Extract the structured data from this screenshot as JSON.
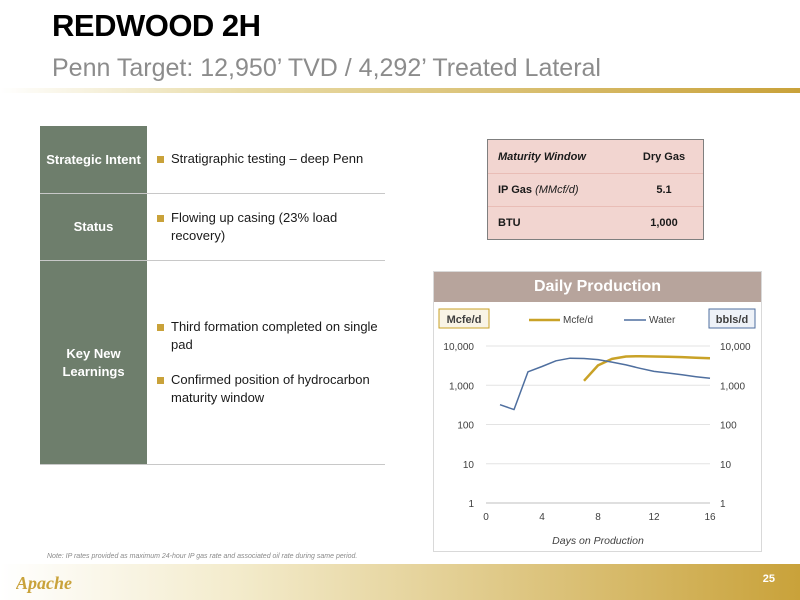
{
  "header": {
    "title": "REDWOOD 2H",
    "subtitle": "Penn Target: 12,950’ TVD / 4,292’ Treated Lateral"
  },
  "info_table": {
    "rows": [
      {
        "label": "Strategic Intent",
        "bullets": [
          "Stratigraphic testing – deep Penn"
        ]
      },
      {
        "label": "Status",
        "bullets": [
          "Flowing up casing (23% load recovery)"
        ]
      },
      {
        "label": "Key New Learnings",
        "bullets": [
          "Third formation completed on single pad",
          "Confirmed position of hydrocarbon maturity window"
        ]
      }
    ]
  },
  "maturity_table": {
    "rows": [
      {
        "key": "Maturity Window",
        "key_italic": "",
        "value": "Dry Gas"
      },
      {
        "key": "IP Gas",
        "key_italic": "(MMcf/d)",
        "value": "5.1"
      },
      {
        "key": "BTU",
        "key_italic": "",
        "value": "1,000"
      }
    ]
  },
  "chart_data": {
    "type": "line",
    "title": "Daily Production",
    "xlabel": "Days on Production",
    "ylabel_left": "Mcfe/d",
    "ylabel_right": "bbls/d",
    "x_ticks": [
      "0",
      "4",
      "8",
      "12",
      "16"
    ],
    "y_ticks": [
      "1",
      "10",
      "100",
      "1,000",
      "10,000"
    ],
    "xlim": [
      0,
      16
    ],
    "ylim": [
      1,
      10000
    ],
    "y_scale": "log",
    "legend_position": "top",
    "series": [
      {
        "name": "Mcfe/d",
        "color": "#c9a227",
        "x": [
          7,
          8,
          9,
          10,
          11,
          12,
          13,
          14,
          15,
          16
        ],
        "y": [
          1300,
          3200,
          4700,
          5400,
          5500,
          5400,
          5300,
          5200,
          5000,
          4900
        ]
      },
      {
        "name": "Water",
        "color": "#4f6f9f",
        "x": [
          1,
          2,
          3,
          4,
          5,
          6,
          7,
          8,
          9,
          10,
          11,
          12,
          13,
          14,
          15,
          16
        ],
        "y": [
          320,
          240,
          2200,
          3000,
          4200,
          4900,
          4800,
          4500,
          3900,
          3300,
          2700,
          2250,
          2050,
          1850,
          1650,
          1500
        ]
      }
    ]
  },
  "footer": {
    "note": "Note: IP rates provided as maximum 24-hour IP gas rate and associated oil rate during same period.",
    "logo_text": "Apache",
    "page_number": "25",
    "accent_color": "#c9a23a"
  }
}
